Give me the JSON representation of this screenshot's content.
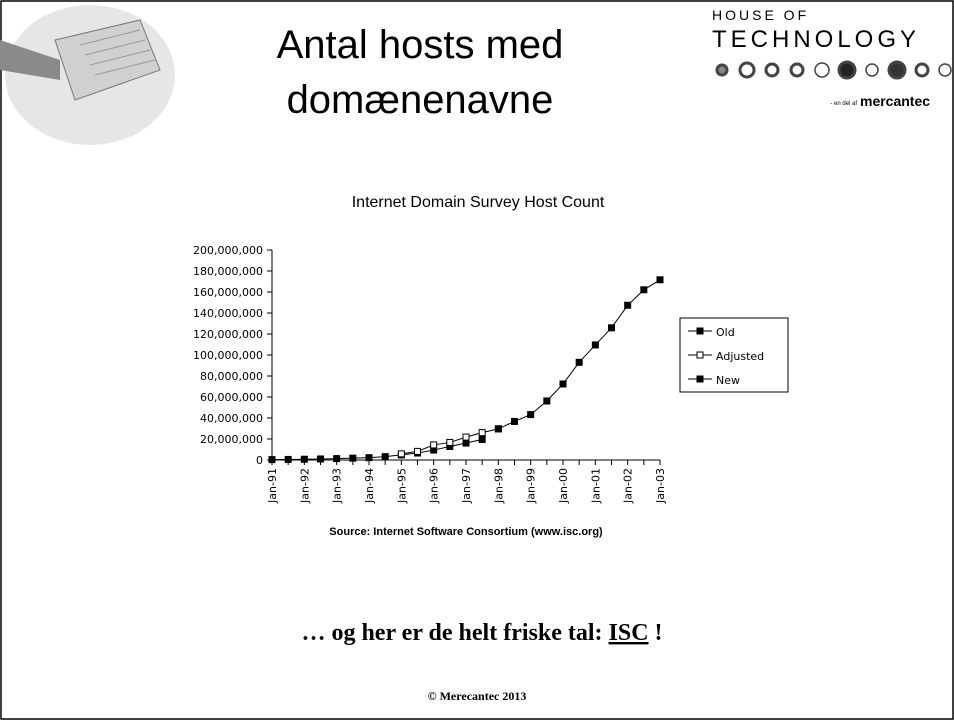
{
  "slide": {
    "title_lines": [
      "Antal hosts med",
      "domænenavne"
    ],
    "logo": {
      "line1": "HOUSE OF",
      "line2": "TECHNOLOGY",
      "tagline": "- en del af",
      "brand": "mercantec"
    },
    "footer_text": {
      "before": "… og her er de helt friske tal: ",
      "link": "ISC",
      "after": " !"
    },
    "copyright": "© Merecantec 2013"
  },
  "chart_data": {
    "type": "line",
    "title": "Internet Domain Survey Host Count",
    "source": "Source: Internet Software Consortium (www.isc.org)",
    "categories": [
      "Jan-91",
      null,
      "Jan-92",
      null,
      "Jan-93",
      null,
      "Jan-94",
      null,
      "Jan-95",
      null,
      "Jan-96",
      null,
      "Jan-97",
      null,
      "Jan-98",
      null,
      "Jan-99",
      null,
      "Jan-00",
      null,
      "Jan-01",
      null,
      "Jan-02",
      null,
      "Jan-03"
    ],
    "series": [
      {
        "name": "Old",
        "color": "#000000",
        "marker_fill": "#000000",
        "values": [
          376000,
          535000,
          727000,
          992000,
          1313000,
          1776000,
          2217000,
          3212000,
          4852000,
          6642000,
          9472000,
          12881000,
          16146000,
          19540000,
          null,
          null,
          null,
          null,
          null,
          null,
          null,
          null,
          null,
          null,
          null
        ]
      },
      {
        "name": "Adjusted",
        "color": "#000000",
        "marker_fill": "#ffffff",
        "values": [
          null,
          null,
          null,
          null,
          null,
          null,
          null,
          null,
          5846000,
          8200000,
          14352000,
          16729000,
          21819000,
          26053000,
          29670000,
          null,
          null,
          null,
          null,
          null,
          null,
          null,
          null,
          null,
          null
        ]
      },
      {
        "name": "New",
        "color": "#000000",
        "marker_fill": "#000000",
        "values": [
          null,
          null,
          null,
          null,
          null,
          null,
          null,
          null,
          null,
          null,
          null,
          null,
          null,
          null,
          29670000,
          36739000,
          43230000,
          56218000,
          72398000,
          93047000,
          109574000,
          125888000,
          147345000,
          162128000,
          171638000
        ]
      }
    ],
    "ylim": [
      0,
      200000000
    ],
    "yticks": [
      {
        "value": 0,
        "label": "0"
      },
      {
        "value": 20000000,
        "label": "20,000,000"
      },
      {
        "value": 40000000,
        "label": "40,000,000"
      },
      {
        "value": 60000000,
        "label": "60,000,000"
      },
      {
        "value": 80000000,
        "label": "80,000,000"
      },
      {
        "value": 100000000,
        "label": "100,000,000"
      },
      {
        "value": 120000000,
        "label": "120,000,000"
      },
      {
        "value": 140000000,
        "label": "140,000,000"
      },
      {
        "value": 160000000,
        "label": "160,000,000"
      },
      {
        "value": 180000000,
        "label": "180,000,000"
      },
      {
        "value": 200000000,
        "label": "200,000,000"
      }
    ],
    "grid": false,
    "legend": "right"
  }
}
